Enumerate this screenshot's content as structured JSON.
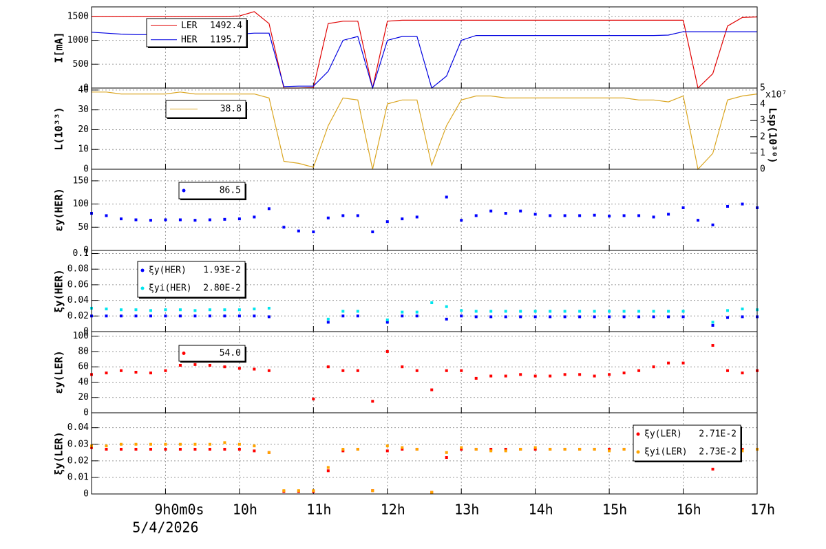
{
  "chart_data": [
    {
      "type": "line",
      "ylabel": "I[mA]",
      "xlim": [
        8,
        17
      ],
      "ylim": [
        0,
        1700
      ],
      "yticks": [
        0,
        500,
        1000,
        1500
      ],
      "grid": true,
      "x": [
        8,
        8.2,
        8.4,
        8.6,
        8.8,
        9,
        9.2,
        9.4,
        9.6,
        9.8,
        10,
        10.2,
        10.4,
        10.6,
        10.8,
        11,
        11.2,
        11.4,
        11.6,
        11.8,
        12,
        12.2,
        12.4,
        12.6,
        12.8,
        13,
        13.2,
        13.4,
        13.6,
        13.8,
        14,
        14.2,
        14.4,
        14.6,
        14.8,
        15,
        15.2,
        15.4,
        15.6,
        15.8,
        16,
        16.2,
        16.4,
        16.6,
        16.8,
        17
      ],
      "series": [
        {
          "name": "LER",
          "color": "#e00000",
          "legend_value": "1492.4",
          "values": [
            1500,
            1500,
            1500,
            1500,
            1500,
            1500,
            1500,
            1500,
            1500,
            1500,
            1510,
            1600,
            1350,
            0,
            0,
            10,
            1350,
            1400,
            1400,
            0,
            1400,
            1420,
            1420,
            1420,
            1420,
            1420,
            1420,
            1420,
            1420,
            1420,
            1420,
            1420,
            1420,
            1420,
            1420,
            1420,
            1420,
            1420,
            1420,
            1420,
            1420,
            0,
            300,
            1300,
            1480,
            1490
          ]
        },
        {
          "name": "HER",
          "color": "#0000e0",
          "legend_value": "1195.7",
          "values": [
            1170,
            1150,
            1130,
            1120,
            1120,
            1110,
            1100,
            1100,
            1110,
            1120,
            1130,
            1150,
            1150,
            30,
            40,
            40,
            350,
            1000,
            1080,
            0,
            1000,
            1080,
            1080,
            0,
            250,
            1000,
            1100,
            1100,
            1100,
            1100,
            1100,
            1100,
            1100,
            1100,
            1100,
            1100,
            1100,
            1100,
            1100,
            1110,
            1180,
            1180,
            1180,
            1180,
            1180,
            1180
          ]
        }
      ]
    },
    {
      "type": "line",
      "ylabel": "L(10³³)",
      "y2label": "Lsp(10³⁰)",
      "y2scale": "x10⁷",
      "xlim": [
        8,
        17
      ],
      "ylim": [
        0,
        41
      ],
      "yticks": [
        0,
        10,
        20,
        30,
        40
      ],
      "y2lim": [
        0,
        5
      ],
      "y2ticks": [
        0,
        1,
        2,
        3,
        4,
        5
      ],
      "grid": true,
      "x": [
        8,
        8.2,
        8.4,
        8.6,
        8.8,
        9,
        9.2,
        9.4,
        9.6,
        9.8,
        10,
        10.2,
        10.4,
        10.6,
        10.8,
        11,
        11.2,
        11.4,
        11.6,
        11.8,
        12,
        12.2,
        12.4,
        12.6,
        12.8,
        13,
        13.2,
        13.4,
        13.6,
        13.8,
        14,
        14.2,
        14.4,
        14.6,
        14.8,
        15,
        15.2,
        15.4,
        15.6,
        15.8,
        16,
        16.2,
        16.4,
        16.6,
        16.8,
        17
      ],
      "series": [
        {
          "color": "#daa520",
          "legend_value": "38.8",
          "values": [
            39,
            39,
            38,
            38,
            38,
            38,
            39,
            38,
            38,
            38,
            38,
            38,
            36,
            4,
            3,
            1,
            22,
            36,
            35,
            0,
            33,
            35,
            35,
            2,
            22,
            35,
            37,
            37,
            36,
            36,
            36,
            36,
            36,
            36,
            36,
            36,
            36,
            35,
            35,
            34,
            37,
            0,
            8,
            35,
            37,
            38
          ]
        }
      ]
    },
    {
      "type": "scatter",
      "ylabel": "εy(HER)",
      "xlim": [
        8,
        17
      ],
      "ylim": [
        0,
        175
      ],
      "yticks": [
        0,
        50,
        100,
        150
      ],
      "grid": true,
      "x": [
        8,
        8.2,
        8.4,
        8.6,
        8.8,
        9,
        9.2,
        9.4,
        9.6,
        9.8,
        10,
        10.2,
        10.4,
        10.6,
        10.8,
        11,
        11.2,
        11.4,
        11.6,
        11.8,
        12,
        12.2,
        12.4,
        12.6,
        12.8,
        13,
        13.2,
        13.4,
        13.6,
        13.8,
        14,
        14.2,
        14.4,
        14.6,
        14.8,
        15,
        15.2,
        15.4,
        15.6,
        15.8,
        16,
        16.2,
        16.4,
        16.6,
        16.8,
        17
      ],
      "series": [
        {
          "color": "#0000ff",
          "legend_value": "86.5",
          "values": [
            80,
            75,
            68,
            66,
            65,
            66,
            66,
            65,
            66,
            67,
            68,
            72,
            90,
            50,
            42,
            40,
            70,
            75,
            75,
            40,
            62,
            68,
            72,
            null,
            115,
            65,
            75,
            85,
            80,
            85,
            78,
            75,
            75,
            75,
            76,
            74,
            75,
            75,
            72,
            78,
            92,
            65,
            55,
            95,
            100,
            92
          ]
        }
      ]
    },
    {
      "type": "scatter",
      "ylabel": "ξy(HER)",
      "xlim": [
        8,
        17
      ],
      "ylim": [
        0,
        0.104
      ],
      "yticks": [
        0,
        0.02,
        0.04,
        0.06,
        0.08,
        0.1
      ],
      "grid": true,
      "x": [
        8,
        8.2,
        8.4,
        8.6,
        8.8,
        9,
        9.2,
        9.4,
        9.6,
        9.8,
        10,
        10.2,
        10.4,
        10.6,
        10.8,
        11,
        11.2,
        11.4,
        11.6,
        11.8,
        12,
        12.2,
        12.4,
        12.6,
        12.8,
        13,
        13.2,
        13.4,
        13.6,
        13.8,
        14,
        14.2,
        14.4,
        14.6,
        14.8,
        15,
        15.2,
        15.4,
        15.6,
        15.8,
        16,
        16.2,
        16.4,
        16.6,
        16.8,
        17
      ],
      "series": [
        {
          "name": "ξy(HER)",
          "color": "#0000ff",
          "legend_value": "1.93E-2",
          "values": [
            0.02,
            0.02,
            0.02,
            0.02,
            0.02,
            0.02,
            0.02,
            0.02,
            0.02,
            0.02,
            0.02,
            0.02,
            0.019,
            null,
            null,
            null,
            0.012,
            0.02,
            0.02,
            null,
            0.012,
            0.02,
            0.02,
            null,
            0.016,
            0.02,
            0.019,
            0.019,
            0.019,
            0.019,
            0.019,
            0.019,
            0.019,
            0.019,
            0.019,
            0.019,
            0.019,
            0.019,
            0.019,
            0.019,
            0.019,
            null,
            0.008,
            0.018,
            0.019,
            0.019
          ]
        },
        {
          "name": "ξyi(HER)",
          "color": "#00e5ee",
          "legend_value": "2.80E-2",
          "values": [
            0.03,
            0.029,
            0.028,
            0.028,
            0.027,
            0.028,
            0.028,
            0.027,
            0.028,
            0.028,
            0.028,
            0.029,
            0.03,
            null,
            null,
            null,
            0.016,
            0.026,
            0.026,
            null,
            0.015,
            0.025,
            0.025,
            0.037,
            0.032,
            0.027,
            0.026,
            0.026,
            0.026,
            0.026,
            0.026,
            0.026,
            0.026,
            0.026,
            0.026,
            0.026,
            0.026,
            0.026,
            0.026,
            0.026,
            0.026,
            null,
            0.012,
            0.027,
            0.029,
            0.028
          ]
        }
      ]
    },
    {
      "type": "scatter",
      "ylabel": "εy(LER)",
      "xlim": [
        8,
        17
      ],
      "ylim": [
        0,
        106
      ],
      "yticks": [
        0,
        20,
        40,
        60,
        80,
        100
      ],
      "grid": true,
      "x": [
        8,
        8.2,
        8.4,
        8.6,
        8.8,
        9,
        9.2,
        9.4,
        9.6,
        9.8,
        10,
        10.2,
        10.4,
        10.6,
        10.8,
        11,
        11.2,
        11.4,
        11.6,
        11.8,
        12,
        12.2,
        12.4,
        12.6,
        12.8,
        13,
        13.2,
        13.4,
        13.6,
        13.8,
        14,
        14.2,
        14.4,
        14.6,
        14.8,
        15,
        15.2,
        15.4,
        15.6,
        15.8,
        16,
        16.2,
        16.4,
        16.6,
        16.8,
        17
      ],
      "series": [
        {
          "color": "#ff0000",
          "legend_value": "54.0",
          "values": [
            50,
            52,
            55,
            53,
            52,
            55,
            62,
            63,
            62,
            60,
            58,
            57,
            55,
            null,
            null,
            18,
            60,
            55,
            55,
            15,
            80,
            60,
            55,
            30,
            55,
            55,
            45,
            48,
            48,
            50,
            48,
            48,
            50,
            50,
            48,
            50,
            52,
            55,
            60,
            65,
            65,
            null,
            88,
            55,
            52,
            55
          ]
        }
      ]
    },
    {
      "type": "scatter",
      "ylabel": "ξy(LER)",
      "xlim": [
        8,
        17
      ],
      "ylim": [
        0,
        0.049
      ],
      "yticks": [
        0,
        0.01,
        0.02,
        0.03,
        0.04
      ],
      "grid": true,
      "x": [
        8,
        8.2,
        8.4,
        8.6,
        8.8,
        9,
        9.2,
        9.4,
        9.6,
        9.8,
        10,
        10.2,
        10.4,
        10.6,
        10.8,
        11,
        11.2,
        11.4,
        11.6,
        11.8,
        12,
        12.2,
        12.4,
        12.6,
        12.8,
        13,
        13.2,
        13.4,
        13.6,
        13.8,
        14,
        14.2,
        14.4,
        14.6,
        14.8,
        15,
        15.2,
        15.4,
        15.6,
        15.8,
        16,
        16.2,
        16.4,
        16.6,
        16.8,
        17
      ],
      "xticks": [
        {
          "value": 9,
          "label": "9h0m0s"
        },
        {
          "value": 10,
          "label": "10h"
        },
        {
          "value": 11,
          "label": "11h"
        },
        {
          "value": 12,
          "label": "12h"
        },
        {
          "value": 13,
          "label": "13h"
        },
        {
          "value": 14,
          "label": "14h"
        },
        {
          "value": 15,
          "label": "15h"
        },
        {
          "value": 16,
          "label": "16h"
        },
        {
          "value": 17,
          "label": "17h"
        }
      ],
      "x_sublabel": "5/4/2026",
      "series": [
        {
          "name": "ξy(LER)",
          "color": "#ff0000",
          "legend_value": "2.71E-2",
          "values": [
            0.028,
            0.027,
            0.027,
            0.027,
            0.027,
            0.027,
            0.027,
            0.027,
            0.027,
            0.027,
            0.027,
            0.026,
            0.025,
            0.0015,
            0.0015,
            0.0015,
            0.014,
            0.026,
            0.027,
            0.002,
            0.026,
            0.027,
            0.027,
            0.001,
            0.022,
            0.027,
            0.027,
            0.027,
            0.027,
            0.027,
            0.027,
            0.027,
            0.027,
            0.027,
            0.027,
            0.027,
            0.027,
            0.027,
            0.027,
            0.027,
            0.027,
            null,
            0.015,
            0.027,
            0.027,
            0.027
          ]
        },
        {
          "name": "ξyi(LER)",
          "color": "#ffa500",
          "legend_value": "2.73E-2",
          "values": [
            0.029,
            0.029,
            0.03,
            0.03,
            0.03,
            0.03,
            0.03,
            0.03,
            0.03,
            0.031,
            0.03,
            0.029,
            0.025,
            0.002,
            0.002,
            0.002,
            0.016,
            0.027,
            0.027,
            0.002,
            0.029,
            0.028,
            0.027,
            0.001,
            0.025,
            0.028,
            0.027,
            0.026,
            0.026,
            0.027,
            0.028,
            0.027,
            0.027,
            0.027,
            0.027,
            0.026,
            0.027,
            0.027,
            0.027,
            0.026,
            0.028,
            null,
            0.032,
            0.028,
            0.026,
            0.027
          ]
        }
      ]
    }
  ]
}
